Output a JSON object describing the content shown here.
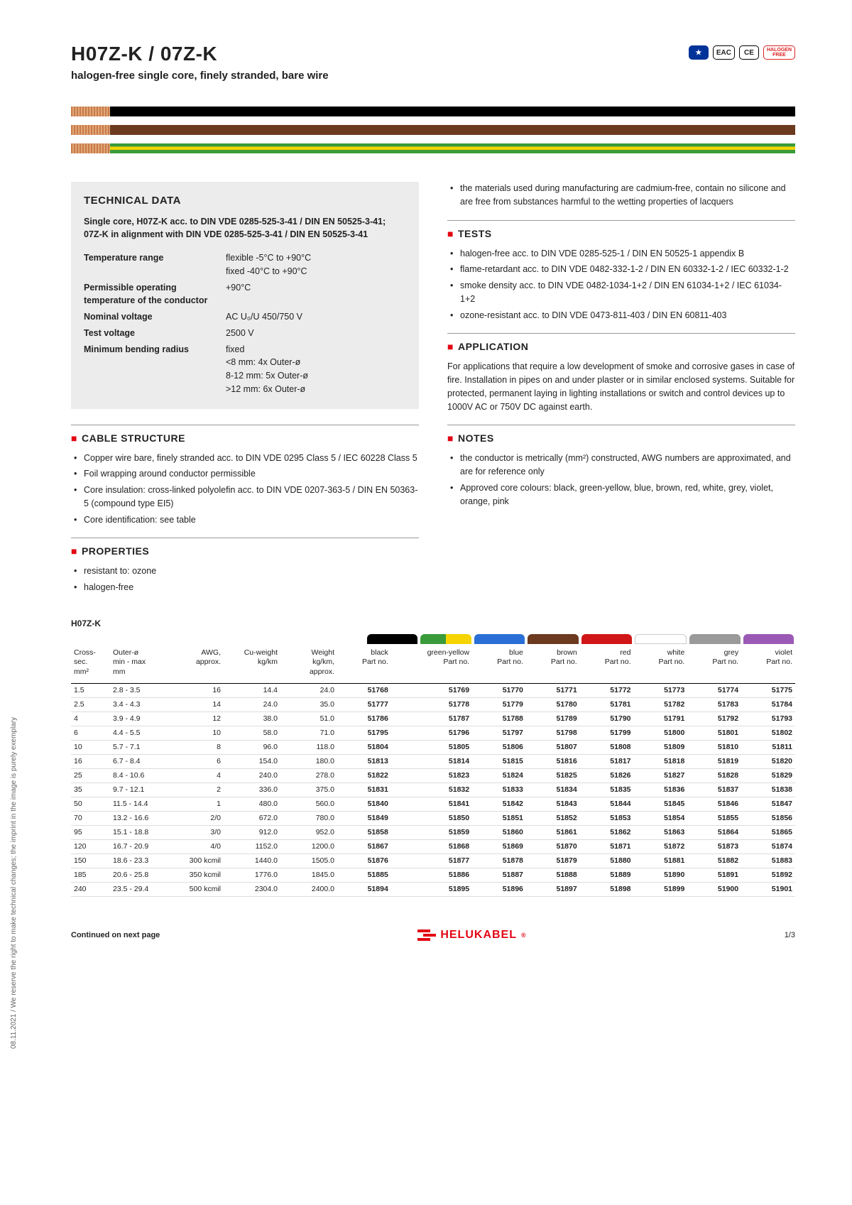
{
  "header": {
    "title": "H07Z-K / 07Z-K",
    "subtitle": "halogen-free single core, finely stranded, bare wire",
    "badges": [
      "EU",
      "EAC",
      "CE",
      "HALOGEN FREE"
    ]
  },
  "sidenote": "08.11.2021 / We reserve the right to make technical changes; the imprint in the image is purely exemplary",
  "cable_colors": [
    {
      "name": "black",
      "css": "black"
    },
    {
      "name": "brown",
      "css": "brown"
    },
    {
      "name": "green-yellow",
      "css": "gy"
    }
  ],
  "techdata": {
    "heading": "TECHNICAL DATA",
    "intro": "Single core, H07Z-K acc. to DIN VDE 0285-525-3-41 / DIN EN 50525-3-41; 07Z-K in alignment with DIN VDE 0285-525-3-41 / DIN EN 50525-3-41",
    "rows": [
      {
        "label": "Temperature range",
        "value": "flexible -5°C to +90°C\nfixed -40°C to +90°C"
      },
      {
        "label": "Permissible operating temperature of the conductor",
        "value": "+90°C"
      },
      {
        "label": "Nominal voltage",
        "value": "AC U₀/U 450/750 V"
      },
      {
        "label": "Test voltage",
        "value": "2500 V"
      },
      {
        "label": "Minimum bending radius",
        "value": "fixed\n<8 mm: 4x Outer-ø\n8-12 mm: 5x Outer-ø\n>12 mm: 6x Outer-ø"
      }
    ]
  },
  "sections": {
    "cable_structure": {
      "title": "CABLE STRUCTURE",
      "items": [
        "Copper wire bare, finely stranded acc. to DIN VDE 0295 Class 5 / IEC 60228 Class 5",
        "Foil wrapping around conductor permissible",
        "Core insulation: cross-linked polyolefin acc. to DIN VDE 0207-363-5 / DIN EN 50363-5 (compound type EI5)",
        "Core identification: see table"
      ]
    },
    "properties": {
      "title": "PROPERTIES",
      "items": [
        "resistant to: ozone",
        "halogen-free"
      ]
    },
    "right_top_items": [
      "the materials used during manufacturing are cadmium-free, contain no silicone and are free from substances harmful to the wetting properties of lacquers"
    ],
    "tests": {
      "title": "TESTS",
      "items": [
        "halogen-free acc. to DIN VDE 0285-525-1 / DIN EN 50525-1 appendix B",
        "flame-retardant acc. to DIN VDE 0482-332-1-2 / DIN EN 60332-1-2 / IEC 60332-1-2",
        "smoke density acc. to DIN VDE 0482-1034-1+2 / DIN EN 61034-1+2 / IEC 61034-1+2",
        "ozone-resistant acc. to DIN VDE 0473-811-403 / DIN EN 60811-403"
      ]
    },
    "application": {
      "title": "APPLICATION",
      "text": "For applications that require a low development of smoke and corrosive gases in case of fire. Installation in pipes on and under plaster or in similar enclosed systems. Suitable for protected, permanent laying in lighting installations or switch and control devices up to 1000V AC or 750V DC against earth."
    },
    "notes": {
      "title": "NOTES",
      "items": [
        "the conductor is metrically (mm²) constructed, AWG numbers are approximated, and are for reference only",
        "Approved core colours: black, green-yellow, blue, brown, red, white, grey, violet, orange, pink"
      ]
    }
  },
  "table": {
    "title": "H07Z-K",
    "color_headers": [
      {
        "label": "black",
        "color": "#000000"
      },
      {
        "label": "green-yellow",
        "color": "linear-gradient(90deg,#3a9b3a 50%,#f6d400 50%)"
      },
      {
        "label": "blue",
        "color": "#2a6fd6"
      },
      {
        "label": "brown",
        "color": "#6b3a1f"
      },
      {
        "label": "red",
        "color": "#d01616"
      },
      {
        "label": "white",
        "color": "#ffffff",
        "border": true
      },
      {
        "label": "grey",
        "color": "#9a9a9a"
      },
      {
        "label": "violet",
        "color": "#9b59b6"
      }
    ],
    "left_headers": [
      "Cross-sec.\nmm²",
      "Outer-ø\nmin - max\nmm",
      "AWG,\napprox.",
      "Cu-weight\nkg/km",
      "Weight\nkg/km,\napprox."
    ],
    "color_subhead": "Part no.",
    "rows": [
      [
        "1.5",
        "2.8 - 3.5",
        "16",
        "14.4",
        "24.0",
        "51768",
        "51769",
        "51770",
        "51771",
        "51772",
        "51773",
        "51774",
        "51775"
      ],
      [
        "2.5",
        "3.4 - 4.3",
        "14",
        "24.0",
        "35.0",
        "51777",
        "51778",
        "51779",
        "51780",
        "51781",
        "51782",
        "51783",
        "51784"
      ],
      [
        "4",
        "3.9 - 4.9",
        "12",
        "38.0",
        "51.0",
        "51786",
        "51787",
        "51788",
        "51789",
        "51790",
        "51791",
        "51792",
        "51793"
      ],
      [
        "6",
        "4.4 - 5.5",
        "10",
        "58.0",
        "71.0",
        "51795",
        "51796",
        "51797",
        "51798",
        "51799",
        "51800",
        "51801",
        "51802"
      ],
      [
        "10",
        "5.7 - 7.1",
        "8",
        "96.0",
        "118.0",
        "51804",
        "51805",
        "51806",
        "51807",
        "51808",
        "51809",
        "51810",
        "51811"
      ],
      [
        "16",
        "6.7 - 8.4",
        "6",
        "154.0",
        "180.0",
        "51813",
        "51814",
        "51815",
        "51816",
        "51817",
        "51818",
        "51819",
        "51820"
      ],
      [
        "25",
        "8.4 - 10.6",
        "4",
        "240.0",
        "278.0",
        "51822",
        "51823",
        "51824",
        "51825",
        "51826",
        "51827",
        "51828",
        "51829"
      ],
      [
        "35",
        "9.7 - 12.1",
        "2",
        "336.0",
        "375.0",
        "51831",
        "51832",
        "51833",
        "51834",
        "51835",
        "51836",
        "51837",
        "51838"
      ],
      [
        "50",
        "11.5 - 14.4",
        "1",
        "480.0",
        "560.0",
        "51840",
        "51841",
        "51842",
        "51843",
        "51844",
        "51845",
        "51846",
        "51847"
      ],
      [
        "70",
        "13.2 - 16.6",
        "2/0",
        "672.0",
        "780.0",
        "51849",
        "51850",
        "51851",
        "51852",
        "51853",
        "51854",
        "51855",
        "51856"
      ],
      [
        "95",
        "15.1 - 18.8",
        "3/0",
        "912.0",
        "952.0",
        "51858",
        "51859",
        "51860",
        "51861",
        "51862",
        "51863",
        "51864",
        "51865"
      ],
      [
        "120",
        "16.7 - 20.9",
        "4/0",
        "1152.0",
        "1200.0",
        "51867",
        "51868",
        "51869",
        "51870",
        "51871",
        "51872",
        "51873",
        "51874"
      ],
      [
        "150",
        "18.6 - 23.3",
        "300 kcmil",
        "1440.0",
        "1505.0",
        "51876",
        "51877",
        "51878",
        "51879",
        "51880",
        "51881",
        "51882",
        "51883"
      ],
      [
        "185",
        "20.6 - 25.8",
        "350 kcmil",
        "1776.0",
        "1845.0",
        "51885",
        "51886",
        "51887",
        "51888",
        "51889",
        "51890",
        "51891",
        "51892"
      ],
      [
        "240",
        "23.5 - 29.4",
        "500 kcmil",
        "2304.0",
        "2400.0",
        "51894",
        "51895",
        "51896",
        "51897",
        "51898",
        "51899",
        "51900",
        "51901"
      ]
    ]
  },
  "footer": {
    "continued": "Continued on next page",
    "brand": "HELUKABEL",
    "page": "1/3"
  }
}
